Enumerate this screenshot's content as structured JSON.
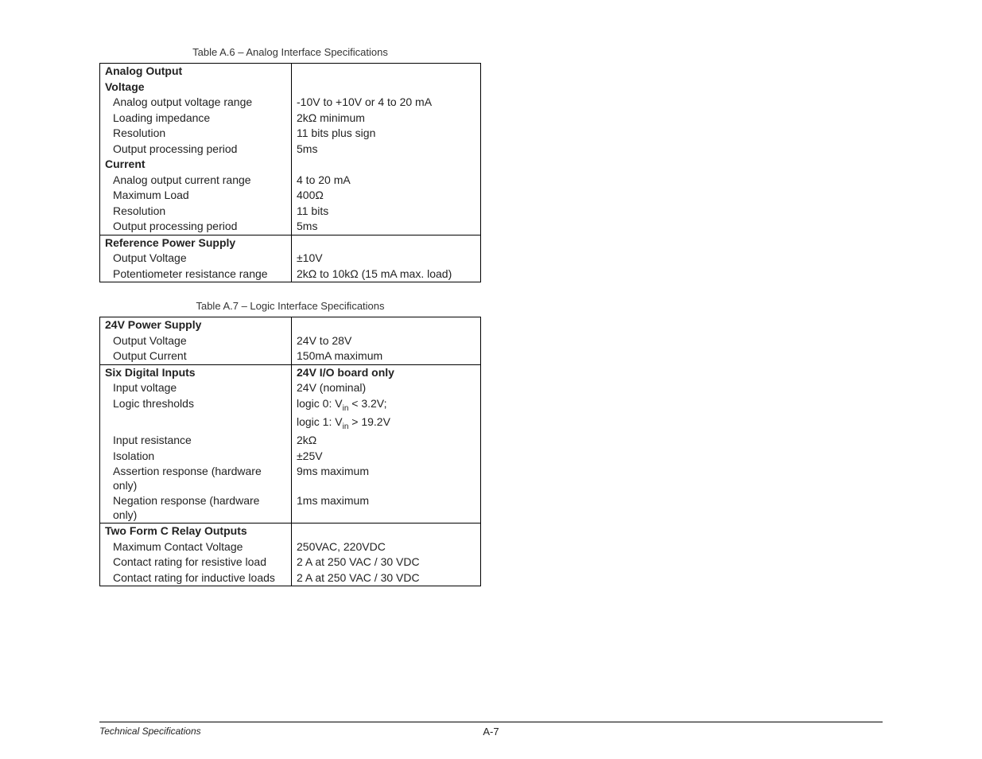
{
  "tableA6": {
    "caption": "Table A.6 – Analog Interface Specifications",
    "sections": [
      {
        "header": "Analog Output",
        "header_value": "",
        "subheader": "Voltage",
        "rows": [
          {
            "label": "Analog output voltage range",
            "value": "-10V to +10V or 4 to 20 mA"
          },
          {
            "label": "Loading impedance",
            "value": "2kΩ minimum"
          },
          {
            "label": "Resolution",
            "value": "11 bits plus sign"
          },
          {
            "label": "Output processing period",
            "value": "5ms"
          }
        ],
        "subheader2": "Current",
        "rows2": [
          {
            "label": "Analog output current range",
            "value": "4 to 20 mA"
          },
          {
            "label": "Maximum Load",
            "value": "400Ω"
          },
          {
            "label": "Resolution",
            "value": "11 bits"
          },
          {
            "label": "Output processing period",
            "value": "5ms"
          }
        ]
      },
      {
        "header": "Reference Power Supply",
        "header_value": "",
        "rows": [
          {
            "label": "Output Voltage",
            "value": "±10V"
          },
          {
            "label": "Potentiometer resistance range",
            "value": "2kΩ to 10kΩ  (15 mA max. load)"
          }
        ]
      }
    ]
  },
  "tableA7": {
    "caption": "Table A.7 – Logic Interface Specifications",
    "sections": [
      {
        "header": "24V Power Supply",
        "header_value": "",
        "rows": [
          {
            "label": "Output Voltage",
            "value": "24V to 28V"
          },
          {
            "label": "Output Current",
            "value": "150mA maximum"
          }
        ]
      },
      {
        "header": "Six Digital Inputs",
        "header_value": "24V I/O board only",
        "rows": [
          {
            "label": "Input voltage",
            "value": "24V (nominal)"
          },
          {
            "label": "Logic thresholds",
            "value_html": "logic 0: V<sub>in</sub> < 3.2V;"
          },
          {
            "label": "",
            "value_html": "logic 1: V<sub>in</sub> > 19.2V"
          },
          {
            "label": "Input resistance",
            "value": "2kΩ"
          },
          {
            "label": "Isolation",
            "value": "±25V"
          },
          {
            "label": "Assertion response (hardware only)",
            "value": "9ms maximum"
          },
          {
            "label": "Negation response (hardware only)",
            "value": "1ms maximum"
          }
        ]
      },
      {
        "header": "Two Form C Relay Outputs",
        "header_value": "",
        "rows": [
          {
            "label": "Maximum Contact Voltage",
            "value": "250VAC, 220VDC"
          },
          {
            "label": "Contact rating for resistive load",
            "value": "2 A at 250 VAC / 30 VDC"
          },
          {
            "label": "Contact rating for inductive loads",
            "value": "2 A at 250 VAC / 30 VDC"
          }
        ]
      }
    ]
  },
  "footer": {
    "left": "Technical Specifications",
    "page": "A-7"
  }
}
